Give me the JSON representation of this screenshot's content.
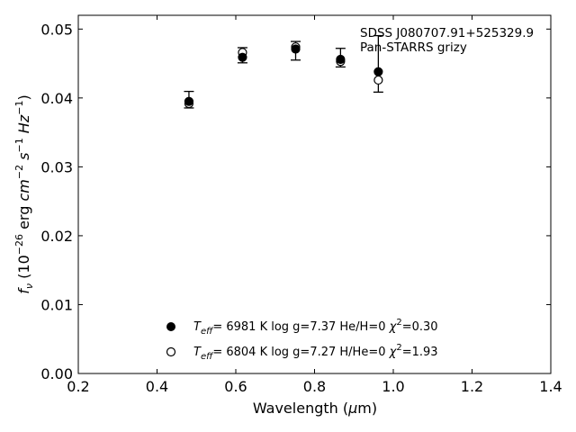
{
  "chart_data": {
    "type": "scatter",
    "xlabel_parts": [
      "Wavelength (",
      "μ",
      "m)"
    ],
    "ylabel_parts": {
      "f": "f",
      "nu": "ν",
      "pre": " (10",
      "e1": "−26",
      "mid1": " erg ",
      "cm": "cm",
      "e2": "−2",
      "s": " s",
      "e3": "−1",
      "hz": " Hz",
      "e4": "−1",
      "end": ")"
    },
    "xlim": [
      0.2,
      1.4
    ],
    "ylim": [
      0.0,
      0.052
    ],
    "x_ticks": [
      0.2,
      0.4,
      0.6,
      0.8,
      1.0,
      1.2,
      1.4
    ],
    "x_tick_labels": [
      "0.2",
      "0.4",
      "0.6",
      "0.8",
      "1.0",
      "1.2",
      "1.4"
    ],
    "y_ticks": [
      0.0,
      0.01,
      0.02,
      0.03,
      0.04,
      0.05
    ],
    "y_tick_labels": [
      "0.00",
      "0.01",
      "0.02",
      "0.03",
      "0.04",
      "0.05"
    ],
    "annotation": [
      "SDSS J080707.91+525329.9",
      "Pan-STARRS grizy"
    ],
    "observed": {
      "x": [
        0.481,
        0.617,
        0.752,
        0.866,
        0.962
      ],
      "y": [
        0.03975,
        0.0462,
        0.04685,
        0.04585,
        0.04495
      ],
      "yerr": [
        0.0012,
        0.0011,
        0.00135,
        0.00135,
        0.0041
      ]
    },
    "series": [
      {
        "marker": "filled",
        "values": [
          0.0395,
          0.0459,
          0.0471,
          0.0456,
          0.0438
        ],
        "legend": {
          "pre": "=  6981 K  log g=7.37  He/H=0  ",
          "chi_label": "χ",
          "chi_exp": "2",
          "chi_val": "=0.30"
        }
      },
      {
        "marker": "open",
        "values": [
          0.0392,
          0.0466,
          0.0474,
          0.0453,
          0.0426
        ],
        "legend": {
          "pre": "=  6804 K  log g=7.27  H/He=0  ",
          "chi_label": "χ",
          "chi_exp": "2",
          "chi_val": "=1.93"
        }
      }
    ],
    "teff_label": {
      "T": "T",
      "sub": "eff"
    },
    "legend_position": "lower-center",
    "grid": false
  }
}
